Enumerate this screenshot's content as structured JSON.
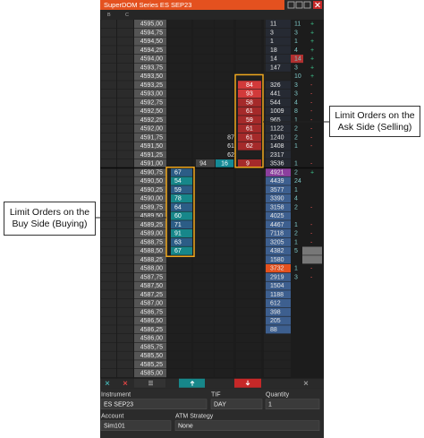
{
  "window": {
    "title": "SuperDOM Series ES SEP23",
    "column_headers": [
      "B",
      "C"
    ]
  },
  "ladder": [
    {
      "price": "4595,00",
      "volume": 11,
      "delta": 11,
      "sign": "+"
    },
    {
      "price": "4594,75",
      "volume": 3,
      "delta": 3,
      "sign": "+"
    },
    {
      "price": "4594,50",
      "volume": 1,
      "delta": 1,
      "sign": "+"
    },
    {
      "price": "4594,25",
      "volume": 18,
      "delta": 4,
      "sign": "+"
    },
    {
      "price": "4594,00",
      "volume": 14,
      "delta": 14,
      "sign": "+"
    },
    {
      "price": "4593,75",
      "volume": 147,
      "delta": 3,
      "sign": "+"
    },
    {
      "price": "4593,50",
      "delta": 10,
      "sign": "+"
    },
    {
      "price": "4593,25",
      "sell": 84,
      "volume": 326,
      "delta": 3,
      "sign": "-"
    },
    {
      "price": "4593,00",
      "sell": 93,
      "volume": 441,
      "delta": 3,
      "sign": "-"
    },
    {
      "price": "4592,75",
      "sell": 58,
      "volume": 544,
      "delta": 4,
      "sign": "-"
    },
    {
      "price": "4592,50",
      "sell": 61,
      "volume": 1009,
      "delta": 8,
      "sign": "-"
    },
    {
      "price": "4592,25",
      "sell": 59,
      "volume": 965,
      "delta": 1,
      "sign": "-"
    },
    {
      "price": "4592,00",
      "sell": 61,
      "volume": 1122,
      "delta": 2,
      "sign": "-"
    },
    {
      "price": "4591,75",
      "sell": 61,
      "ask": 87,
      "volume": 1240,
      "delta": 2,
      "sign": "-"
    },
    {
      "price": "4591,50",
      "sell": 62,
      "ask": 61,
      "volume": 1408,
      "delta": 1,
      "sign": "-"
    },
    {
      "price": "4591,25",
      "ask": 62,
      "volume": 2317
    },
    {
      "price": "4591,00",
      "sell": 9,
      "bid": 94,
      "last": 16,
      "volume": 3536,
      "delta": 1,
      "sign": "-"
    },
    {
      "price": "4590,75",
      "buy": 67,
      "volume": 4921,
      "delta": 2,
      "sign": "+"
    },
    {
      "price": "4590,50",
      "buy": 54,
      "volume": 4439,
      "delta": 24
    },
    {
      "price": "4590,25",
      "buy": 59,
      "volume": 3577,
      "delta": 1
    },
    {
      "price": "4590,00",
      "buy": 78,
      "volume": 3390,
      "delta": 4
    },
    {
      "price": "4589,75",
      "buy": 64,
      "volume": 3158,
      "delta": 2,
      "sign": "-"
    },
    {
      "price": "4589,50",
      "buy": 60,
      "volume": 4025
    },
    {
      "price": "4589,25",
      "buy": 71,
      "volume": 4467,
      "delta": 1,
      "sign": "-"
    },
    {
      "price": "4589,00",
      "buy": 91,
      "volume": 7118,
      "delta": 2,
      "sign": "-"
    },
    {
      "price": "4588,75",
      "buy": 63,
      "volume": 3205,
      "delta": 1,
      "sign": "-"
    },
    {
      "price": "4588,50",
      "buy": 67,
      "volume": 4382,
      "delta": 5
    },
    {
      "price": "4588,25",
      "volume": 1580
    },
    {
      "price": "4588,00",
      "volume": 3732,
      "delta": 1,
      "sign": "-"
    },
    {
      "price": "4587,75",
      "volume": 2919,
      "delta": 3,
      "sign": "-"
    },
    {
      "price": "4587,50",
      "volume": 1504
    },
    {
      "price": "4587,25",
      "volume": 1188
    },
    {
      "price": "4587,00",
      "volume": 612
    },
    {
      "price": "4586,75",
      "volume": 398
    },
    {
      "price": "4586,50",
      "volume": 205
    },
    {
      "price": "4586,25",
      "volume": 88
    },
    {
      "price": "4586,00"
    },
    {
      "price": "4585,75"
    },
    {
      "price": "4585,50"
    },
    {
      "price": "4585,25"
    },
    {
      "price": "4585,00"
    }
  ],
  "order_entry": {
    "instrument_label": "Instrument",
    "instrument": "ES SEP23",
    "tif_label": "TIF",
    "tif": "DAY",
    "quantity_label": "Quantity",
    "quantity": "1",
    "account_label": "Account",
    "account": "Sim101",
    "atm_label": "ATM Strategy",
    "atm": "None"
  },
  "callouts": {
    "buy": "Limit Orders on the Buy Side (Buying)",
    "sell": "Limit Orders on the Ask Side (Selling)"
  }
}
